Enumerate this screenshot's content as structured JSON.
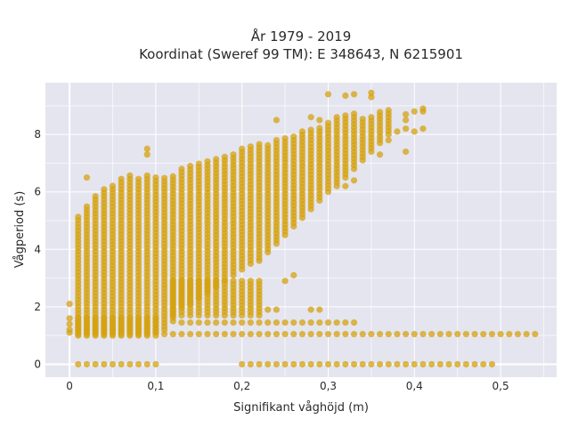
{
  "chart_data": {
    "type": "scatter",
    "title": "År 1979 - 2019",
    "subtitle": "Koordinat (Sweref 99 TM): E 348643, N 6215901",
    "xlabel": "Signifikant våghöjd (m)",
    "ylabel": "Vågperiod (s)",
    "xlim": [
      -0.028,
      0.565
    ],
    "ylim": [
      -0.45,
      9.8
    ],
    "x_ticks": [
      "0",
      "0,1",
      "0,2",
      "0,3",
      "0,4",
      "0,5"
    ],
    "x_tick_values": [
      0,
      0.1,
      0.2,
      0.3,
      0.4,
      0.5
    ],
    "y_ticks": [
      "0",
      "2",
      "4",
      "6",
      "8"
    ],
    "y_tick_values": [
      0,
      2,
      4,
      6,
      8
    ],
    "grid": true,
    "marker_color": "#d4a10f",
    "background_color": "#e5e5f0",
    "x_step": 0.01,
    "bands": [
      {
        "x_start": 0.01,
        "x_end": 0.09,
        "y_low": 0,
        "y_high": 0
      },
      {
        "x_start": 0.2,
        "x_end": 0.49,
        "y_low": 0,
        "y_high": 0
      },
      {
        "x_start": 0.01,
        "x_end": 0.1,
        "y_low": 1.0,
        "y_high": 1.6
      },
      {
        "x_start": 0.11,
        "x_end": 0.54,
        "y_low": 1.05,
        "y_high": 1.1
      },
      {
        "x_start": 0.13,
        "x_end": 0.33,
        "y_low": 1.45,
        "y_high": 1.45
      },
      {
        "x_start": 0.12,
        "x_end": 0.22,
        "y_low": 1.7,
        "y_high": 3.0
      }
    ],
    "columns": [
      {
        "x": 0.01,
        "y_low": 1.05,
        "y_high": 5.2
      },
      {
        "x": 0.02,
        "y_low": 1.05,
        "y_high": 5.6
      },
      {
        "x": 0.03,
        "y_low": 1.05,
        "y_high": 5.9
      },
      {
        "x": 0.04,
        "y_low": 1.05,
        "y_high": 6.1
      },
      {
        "x": 0.05,
        "y_low": 1.05,
        "y_high": 6.3
      },
      {
        "x": 0.06,
        "y_low": 1.05,
        "y_high": 6.5
      },
      {
        "x": 0.07,
        "y_low": 1.05,
        "y_high": 6.6
      },
      {
        "x": 0.08,
        "y_low": 1.05,
        "y_high": 6.5
      },
      {
        "x": 0.09,
        "y_low": 1.05,
        "y_high": 6.6
      },
      {
        "x": 0.1,
        "y_low": 1.1,
        "y_high": 6.5
      },
      {
        "x": 0.11,
        "y_low": 1.2,
        "y_high": 6.5
      },
      {
        "x": 0.12,
        "y_low": 1.5,
        "y_high": 6.6
      },
      {
        "x": 0.13,
        "y_low": 2.0,
        "y_high": 6.8
      },
      {
        "x": 0.14,
        "y_low": 2.1,
        "y_high": 6.9
      },
      {
        "x": 0.15,
        "y_low": 2.3,
        "y_high": 7.0
      },
      {
        "x": 0.16,
        "y_low": 2.5,
        "y_high": 7.1
      },
      {
        "x": 0.17,
        "y_low": 2.7,
        "y_high": 7.2
      },
      {
        "x": 0.18,
        "y_low": 2.9,
        "y_high": 7.3
      },
      {
        "x": 0.19,
        "y_low": 3.1,
        "y_high": 7.4
      },
      {
        "x": 0.2,
        "y_low": 3.3,
        "y_high": 7.5
      },
      {
        "x": 0.21,
        "y_low": 3.5,
        "y_high": 7.6
      },
      {
        "x": 0.22,
        "y_low": 3.7,
        "y_high": 7.7
      },
      {
        "x": 0.23,
        "y_low": 3.9,
        "y_high": 7.7
      },
      {
        "x": 0.24,
        "y_low": 4.2,
        "y_high": 7.8
      },
      {
        "x": 0.25,
        "y_low": 4.5,
        "y_high": 7.9
      },
      {
        "x": 0.26,
        "y_low": 4.8,
        "y_high": 8.0
      },
      {
        "x": 0.27,
        "y_low": 5.1,
        "y_high": 8.1
      },
      {
        "x": 0.28,
        "y_low": 5.4,
        "y_high": 8.2
      },
      {
        "x": 0.29,
        "y_low": 5.7,
        "y_high": 8.3
      },
      {
        "x": 0.3,
        "y_low": 6.0,
        "y_high": 8.5
      },
      {
        "x": 0.31,
        "y_low": 6.2,
        "y_high": 8.6
      },
      {
        "x": 0.32,
        "y_low": 6.5,
        "y_high": 8.7
      },
      {
        "x": 0.33,
        "y_low": 6.8,
        "y_high": 8.8
      },
      {
        "x": 0.34,
        "y_low": 7.1,
        "y_high": 8.6
      },
      {
        "x": 0.35,
        "y_low": 7.4,
        "y_high": 8.7
      },
      {
        "x": 0.36,
        "y_low": 7.7,
        "y_high": 8.8
      },
      {
        "x": 0.37,
        "y_low": 8.0,
        "y_high": 8.9
      }
    ],
    "points": [
      {
        "x": 0.0,
        "y": 1.1
      },
      {
        "x": 0.0,
        "y": 1.2
      },
      {
        "x": 0.0,
        "y": 1.4
      },
      {
        "x": 0.0,
        "y": 1.6
      },
      {
        "x": 0.0,
        "y": 2.1
      },
      {
        "x": 0.02,
        "y": 6.5
      },
      {
        "x": 0.09,
        "y": 7.5
      },
      {
        "x": 0.09,
        "y": 7.3
      },
      {
        "x": 0.1,
        "y": 0.0
      },
      {
        "x": 0.3,
        "y": 9.4
      },
      {
        "x": 0.32,
        "y": 9.35
      },
      {
        "x": 0.33,
        "y": 9.4
      },
      {
        "x": 0.35,
        "y": 9.45
      },
      {
        "x": 0.35,
        "y": 9.3
      },
      {
        "x": 0.24,
        "y": 8.5
      },
      {
        "x": 0.28,
        "y": 8.6
      },
      {
        "x": 0.29,
        "y": 8.5
      },
      {
        "x": 0.38,
        "y": 8.1
      },
      {
        "x": 0.39,
        "y": 8.2
      },
      {
        "x": 0.39,
        "y": 7.4
      },
      {
        "x": 0.37,
        "y": 7.8
      },
      {
        "x": 0.36,
        "y": 7.3
      },
      {
        "x": 0.4,
        "y": 8.1
      },
      {
        "x": 0.41,
        "y": 8.2
      },
      {
        "x": 0.39,
        "y": 8.5
      },
      {
        "x": 0.39,
        "y": 8.7
      },
      {
        "x": 0.4,
        "y": 8.8
      },
      {
        "x": 0.41,
        "y": 8.9
      },
      {
        "x": 0.41,
        "y": 8.8
      },
      {
        "x": 0.28,
        "y": 1.9
      },
      {
        "x": 0.29,
        "y": 1.9
      },
      {
        "x": 0.24,
        "y": 1.9
      },
      {
        "x": 0.23,
        "y": 1.9
      },
      {
        "x": 0.25,
        "y": 2.9
      },
      {
        "x": 0.26,
        "y": 3.1
      },
      {
        "x": 0.22,
        "y": 3.6
      },
      {
        "x": 0.33,
        "y": 6.4
      },
      {
        "x": 0.32,
        "y": 6.2
      }
    ]
  }
}
